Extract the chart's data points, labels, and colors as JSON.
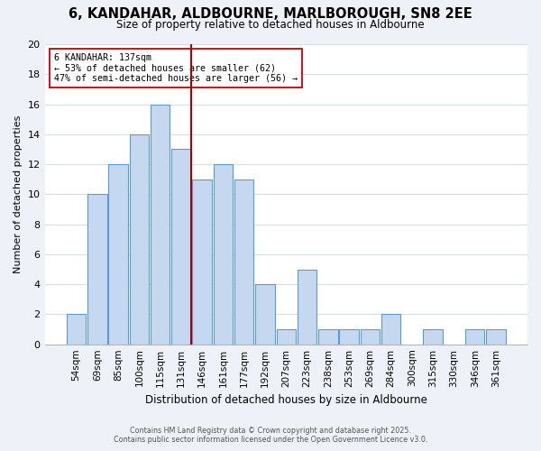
{
  "title": "6, KANDAHAR, ALDBOURNE, MARLBOROUGH, SN8 2EE",
  "subtitle": "Size of property relative to detached houses in Aldbourne",
  "xlabel": "Distribution of detached houses by size in Aldbourne",
  "ylabel": "Number of detached properties",
  "categories": [
    "54sqm",
    "69sqm",
    "85sqm",
    "100sqm",
    "115sqm",
    "131sqm",
    "146sqm",
    "161sqm",
    "177sqm",
    "192sqm",
    "207sqm",
    "223sqm",
    "238sqm",
    "253sqm",
    "269sqm",
    "284sqm",
    "300sqm",
    "315sqm",
    "330sqm",
    "346sqm",
    "361sqm"
  ],
  "values": [
    2,
    10,
    12,
    14,
    16,
    13,
    11,
    12,
    11,
    4,
    1,
    5,
    1,
    1,
    1,
    2,
    0,
    1,
    0,
    1,
    1
  ],
  "bar_color": "#c5d8ef",
  "bar_edge_color": "#5b9bd5",
  "grid_color": "#d0dce8",
  "background_color": "#ffffff",
  "figure_background": "#eef2f8",
  "annotation_line1": "6 KANDAHAR: 137sqm",
  "annotation_line2": "← 53% of detached houses are smaller (62)",
  "annotation_line3": "47% of semi-detached houses are larger (56) →",
  "vline_color": "#aa0000",
  "ylim": [
    0,
    20
  ],
  "yticks": [
    0,
    2,
    4,
    6,
    8,
    10,
    12,
    14,
    16,
    18,
    20
  ],
  "footer_line1": "Contains HM Land Registry data © Crown copyright and database right 2025.",
  "footer_line2": "Contains public sector information licensed under the Open Government Licence v3.0."
}
